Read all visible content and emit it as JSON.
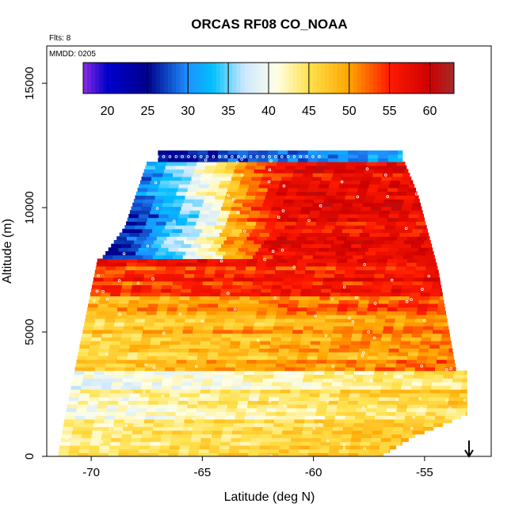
{
  "chart_data": {
    "type": "heatmap",
    "title": "ORCAS RF08 CO_NOAA",
    "flights_label": "Flts: 8",
    "date_label": "MMDD: 0205",
    "xlabel": "Latitude (deg N)",
    "ylabel": "Altitude (m)",
    "xlim": [
      -72,
      -52
    ],
    "ylim": [
      0,
      16500
    ],
    "x_ticks": [
      -70,
      -65,
      -60,
      -55
    ],
    "x_tick_labels": [
      "-70",
      "-65",
      "-60",
      "-55"
    ],
    "y_ticks": [
      0,
      5000,
      10000,
      15000
    ],
    "y_tick_labels": [
      "0",
      "5000",
      "10000",
      "15000"
    ],
    "colorbar": {
      "min": 17,
      "max": 63,
      "ticks": [
        20,
        25,
        30,
        35,
        40,
        45,
        50,
        55,
        60
      ],
      "tick_labels": [
        "20",
        "25",
        "30",
        "35",
        "40",
        "45",
        "50",
        "55",
        "60"
      ],
      "stops": [
        {
          "v": 17,
          "c": "#8a2be2"
        },
        {
          "v": 20,
          "c": "#0000cd"
        },
        {
          "v": 25,
          "c": "#00008b"
        },
        {
          "v": 30,
          "c": "#1e90ff"
        },
        {
          "v": 33,
          "c": "#00bfff"
        },
        {
          "v": 37,
          "c": "#cde8ff"
        },
        {
          "v": 41,
          "c": "#ffffe6"
        },
        {
          "v": 45,
          "c": "#ffe24d"
        },
        {
          "v": 50,
          "c": "#ffa500"
        },
        {
          "v": 55,
          "c": "#ff1a00"
        },
        {
          "v": 60,
          "c": "#cc0000"
        },
        {
          "v": 63,
          "c": "#a52a2a"
        }
      ]
    },
    "field_description_bands": [
      {
        "alt_min": 11800,
        "alt_max": 12300,
        "lat_min": -67.5,
        "lat_max": -56,
        "value_start": 24,
        "value_end": 33
      },
      {
        "alt_min": 8000,
        "alt_max": 11800,
        "lat_min": -68.5,
        "lat_max": -55,
        "value_start": 27,
        "value_end": 58
      },
      {
        "alt_min": 6500,
        "alt_max": 8000,
        "lat_min": -70,
        "lat_max": -54,
        "value_start": 56,
        "value_end": 57
      },
      {
        "alt_min": 3500,
        "alt_max": 6500,
        "lat_min": -70.5,
        "lat_max": -53.5,
        "value_start": 46,
        "value_end": 54
      },
      {
        "alt_min": 1500,
        "alt_max": 3500,
        "lat_min": -71,
        "lat_max": -53,
        "value_start": 42,
        "value_end": 47
      },
      {
        "alt_min": 0,
        "alt_max": 1500,
        "lat_min": -71.5,
        "lat_max": -57,
        "value_start": 44,
        "value_end": 50
      }
    ],
    "arrow_marker": {
      "lat": -53.0,
      "label": "↓"
    }
  }
}
